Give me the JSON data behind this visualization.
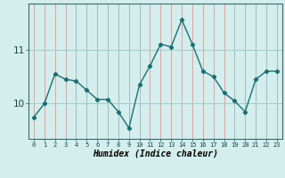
{
  "x": [
    0,
    1,
    2,
    3,
    4,
    5,
    6,
    7,
    8,
    9,
    10,
    11,
    12,
    13,
    14,
    15,
    16,
    17,
    18,
    19,
    20,
    21,
    22,
    23
  ],
  "y": [
    9.75,
    10.0,
    10.55,
    10.45,
    10.42,
    10.25,
    10.08,
    10.08,
    9.85,
    9.55,
    10.35,
    10.7,
    11.1,
    11.05,
    11.55,
    11.1,
    10.6,
    10.5,
    10.2,
    10.05,
    9.85,
    10.45,
    10.6,
    10.6
  ],
  "line_color": "#1a7070",
  "marker": "D",
  "marker_size": 2.2,
  "bg_color": "#d4eeee",
  "vgrid_color": "#c8a0a0",
  "hgrid_color": "#a8c8c8",
  "xlabel": "Humidex (Indice chaleur)",
  "yticks": [
    10,
    11
  ],
  "ylim": [
    9.35,
    11.85
  ],
  "xlim": [
    -0.5,
    23.5
  ],
  "xticks": [
    0,
    1,
    2,
    3,
    4,
    5,
    6,
    7,
    8,
    9,
    10,
    11,
    12,
    13,
    14,
    15,
    16,
    17,
    18,
    19,
    20,
    21,
    22,
    23
  ]
}
